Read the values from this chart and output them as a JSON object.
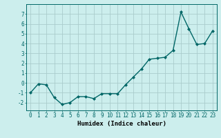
{
  "x": [
    0,
    1,
    2,
    3,
    4,
    5,
    6,
    7,
    8,
    9,
    10,
    11,
    12,
    13,
    14,
    15,
    16,
    17,
    18,
    19,
    20,
    21,
    22,
    23
  ],
  "y": [
    -1.0,
    -0.1,
    -0.2,
    -1.5,
    -2.2,
    -2.0,
    -1.4,
    -1.4,
    -1.6,
    -1.1,
    -1.1,
    -1.1,
    -0.2,
    0.6,
    1.4,
    2.4,
    2.5,
    2.6,
    3.3,
    7.2,
    5.5,
    3.9,
    4.0,
    5.3
  ],
  "line_color": "#006666",
  "marker": "D",
  "marker_size": 2.0,
  "bg_color": "#cceeed",
  "grid_color": "#aacccc",
  "grid_minor_color": "#c8e8e8",
  "xlabel": "Humidex (Indice chaleur)",
  "xlim": [
    -0.5,
    23.5
  ],
  "ylim": [
    -2.8,
    8.0
  ],
  "yticks": [
    -2,
    -1,
    0,
    1,
    2,
    3,
    4,
    5,
    6,
    7
  ],
  "xticks": [
    0,
    1,
    2,
    3,
    4,
    5,
    6,
    7,
    8,
    9,
    10,
    11,
    12,
    13,
    14,
    15,
    16,
    17,
    18,
    19,
    20,
    21,
    22,
    23
  ],
  "tick_fontsize": 5.5,
  "xlabel_fontsize": 6.5,
  "line_width": 1.0
}
